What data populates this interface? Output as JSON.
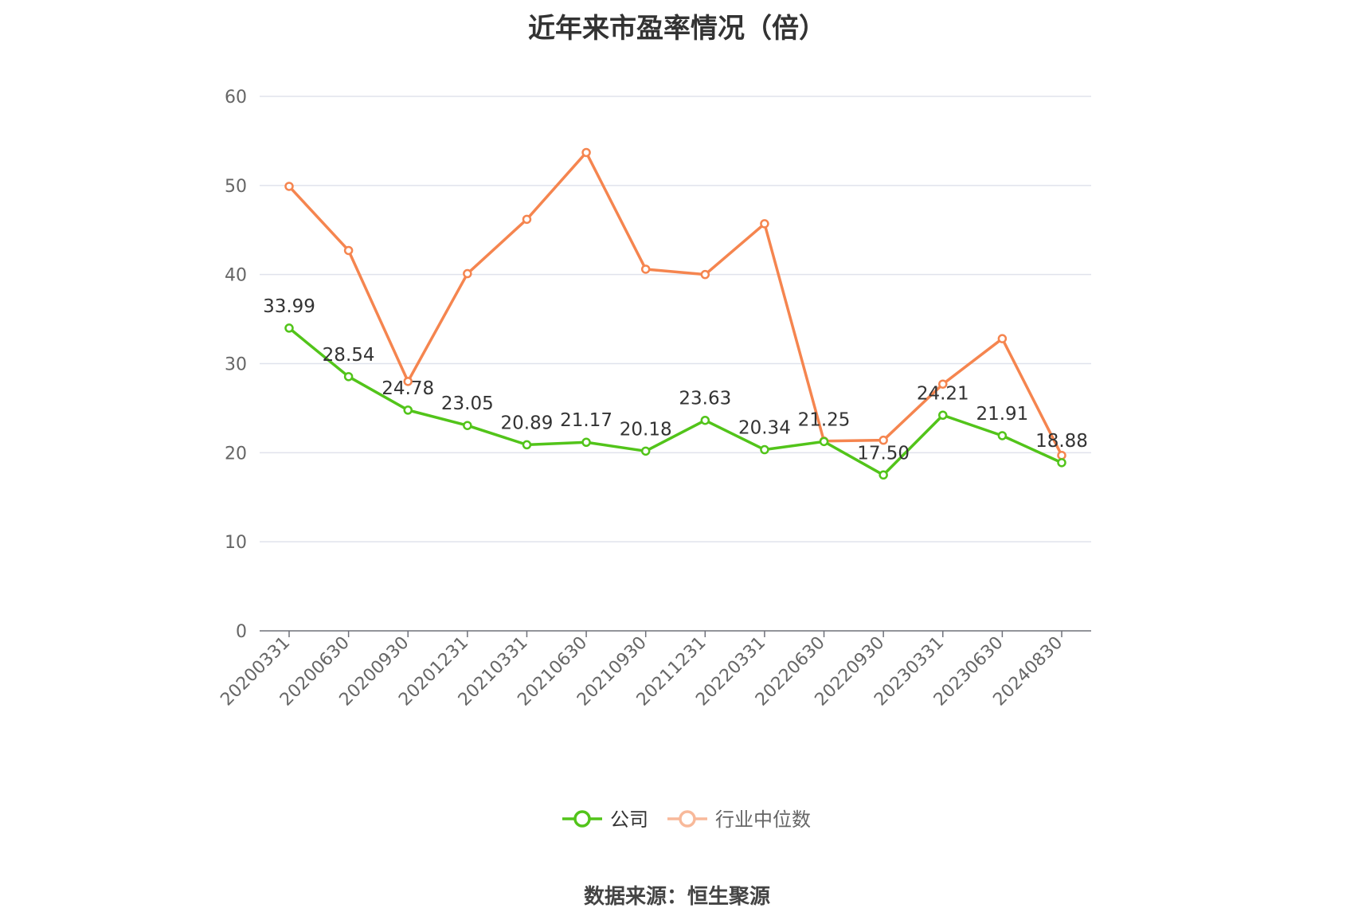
{
  "title": "近年来市盈率情况（倍）",
  "source": "数据来源：恒生聚源",
  "chart_data": {
    "type": "line",
    "title": "近年来市盈率情况（倍）",
    "categories": [
      "20200331",
      "20200630",
      "20200930",
      "20201231",
      "20210331",
      "20210630",
      "20210930",
      "20211231",
      "20220331",
      "20220630",
      "20220930",
      "20230331",
      "20230630",
      "20240830"
    ],
    "ylim": [
      0,
      60
    ],
    "yticks": [
      0,
      10,
      20,
      30,
      40,
      50,
      60
    ],
    "grid": true,
    "legend_position": "bottom",
    "series": [
      {
        "name": "公司",
        "color": "#52c41a",
        "show_labels": true,
        "values": [
          33.99,
          28.54,
          24.78,
          23.05,
          20.89,
          21.17,
          20.18,
          23.63,
          20.34,
          21.25,
          17.5,
          24.21,
          21.91,
          18.88
        ]
      },
      {
        "name": "行业中位数",
        "color": "#f5854f",
        "legend_color": "#f8b99a",
        "show_labels": false,
        "values": [
          49.9,
          42.7,
          28.0,
          40.1,
          46.2,
          53.7,
          40.6,
          40.0,
          45.7,
          21.3,
          21.4,
          27.7,
          32.8,
          19.7
        ]
      }
    ]
  }
}
